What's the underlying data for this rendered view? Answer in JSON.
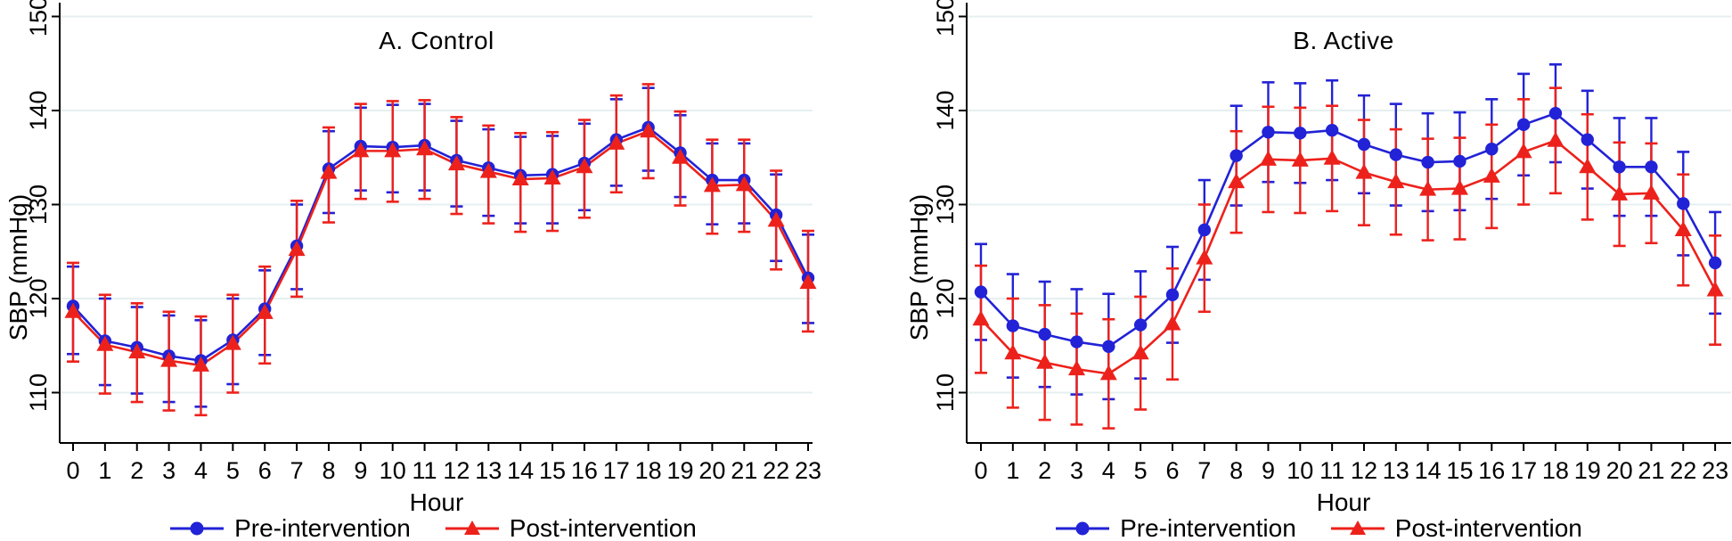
{
  "figure": {
    "background": "#ffffff",
    "grid_color": "#e5eff0",
    "axis_color": "#000000",
    "text_color": "#000000",
    "ylabel": "SBP (mmHg)",
    "xlabel": "Hour",
    "y_ticks": [
      110,
      120,
      130,
      140,
      150
    ],
    "legend": {
      "pre_label": "Pre-intervention",
      "post_label": "Post-intervention",
      "pre_color": "#2222d6",
      "post_color": "#ed211b",
      "pre_marker": "circle",
      "post_marker": "triangle"
    }
  },
  "chart_data": [
    {
      "type": "line",
      "title": "A. Control",
      "xlabel": "Hour",
      "ylabel": "SBP (mmHg)",
      "x": [
        0,
        1,
        2,
        3,
        4,
        5,
        6,
        7,
        8,
        9,
        10,
        11,
        12,
        13,
        14,
        15,
        16,
        17,
        18,
        19,
        20,
        21,
        22,
        23
      ],
      "yticks": [
        110,
        120,
        130,
        140,
        150
      ],
      "ylim": [
        104.6,
        151.5
      ],
      "grid": true,
      "legend_position": "bottom",
      "series": [
        {
          "name": "Pre-intervention",
          "color": "#2222d6",
          "marker": "circle",
          "values": [
            119.2,
            115.5,
            114.8,
            113.9,
            113.4,
            115.6,
            118.9,
            125.6,
            133.8,
            136.2,
            136.1,
            136.3,
            134.7,
            133.9,
            133.1,
            133.2,
            134.4,
            136.9,
            138.2,
            135.5,
            132.6,
            132.6,
            128.9,
            122.2
          ],
          "ci_low": [
            114.1,
            110.8,
            109.9,
            109.0,
            108.5,
            110.9,
            114.0,
            121.0,
            129.1,
            131.5,
            131.3,
            131.5,
            129.8,
            128.8,
            128.0,
            128.0,
            129.4,
            132.0,
            133.6,
            130.8,
            127.9,
            128.0,
            124.0,
            117.4
          ],
          "ci_high": [
            123.4,
            120.0,
            119.1,
            118.2,
            117.7,
            120.0,
            123.0,
            130.0,
            137.8,
            140.3,
            140.6,
            140.7,
            138.9,
            138.0,
            137.2,
            137.3,
            138.6,
            141.2,
            142.4,
            139.5,
            136.5,
            136.5,
            133.2,
            126.8
          ]
        },
        {
          "name": "Post-intervention",
          "color": "#ed211b",
          "marker": "triangle",
          "values": [
            118.6,
            115.1,
            114.3,
            113.4,
            112.9,
            115.2,
            118.5,
            125.2,
            133.4,
            135.7,
            135.7,
            135.9,
            134.3,
            133.5,
            132.7,
            132.8,
            134.0,
            136.5,
            137.8,
            135.0,
            132.0,
            132.1,
            128.3,
            121.7
          ],
          "ci_low": [
            113.3,
            109.9,
            109.0,
            108.1,
            107.6,
            110.0,
            113.1,
            120.2,
            128.1,
            130.6,
            130.3,
            130.6,
            129.0,
            128.0,
            127.1,
            127.2,
            128.6,
            131.3,
            132.8,
            129.9,
            126.9,
            127.1,
            123.1,
            116.5
          ],
          "ci_high": [
            123.8,
            120.4,
            119.5,
            118.6,
            118.1,
            120.4,
            123.4,
            130.4,
            138.2,
            140.7,
            141.0,
            141.1,
            139.3,
            138.4,
            137.6,
            137.7,
            139.0,
            141.6,
            142.8,
            139.9,
            136.9,
            136.9,
            133.6,
            127.2
          ]
        }
      ]
    },
    {
      "type": "line",
      "title": "B. Active",
      "xlabel": "Hour",
      "ylabel": "SBP (mmHg)",
      "x": [
        0,
        1,
        2,
        3,
        4,
        5,
        6,
        7,
        8,
        9,
        10,
        11,
        12,
        13,
        14,
        15,
        16,
        17,
        18,
        19,
        20,
        21,
        22,
        23
      ],
      "yticks": [
        110,
        120,
        130,
        140,
        150
      ],
      "ylim": [
        104.6,
        151.5
      ],
      "grid": true,
      "legend_position": "bottom",
      "series": [
        {
          "name": "Pre-intervention",
          "color": "#2222d6",
          "marker": "circle",
          "values": [
            120.7,
            117.1,
            116.2,
            115.4,
            114.9,
            117.2,
            120.4,
            127.3,
            135.2,
            137.7,
            137.6,
            137.9,
            136.4,
            135.3,
            134.5,
            134.6,
            135.9,
            138.5,
            139.7,
            136.9,
            134.0,
            134.0,
            130.1,
            123.8
          ],
          "ci_low": [
            115.6,
            111.6,
            110.6,
            109.8,
            109.3,
            111.5,
            115.3,
            122.0,
            129.9,
            132.4,
            132.3,
            132.6,
            131.2,
            129.9,
            129.3,
            129.4,
            130.6,
            133.1,
            134.5,
            131.7,
            128.8,
            128.8,
            124.6,
            118.4
          ],
          "ci_high": [
            125.8,
            122.6,
            121.8,
            121.0,
            120.5,
            122.9,
            125.5,
            132.6,
            140.5,
            143.0,
            142.9,
            143.2,
            141.6,
            140.7,
            139.7,
            139.8,
            141.2,
            143.9,
            144.9,
            142.1,
            139.2,
            139.2,
            135.6,
            129.2
          ]
        },
        {
          "name": "Post-intervention",
          "color": "#ed211b",
          "marker": "triangle",
          "values": [
            117.8,
            114.2,
            113.2,
            112.5,
            112.0,
            114.2,
            117.3,
            124.3,
            132.4,
            134.8,
            134.7,
            134.9,
            133.4,
            132.4,
            131.6,
            131.7,
            133.0,
            135.6,
            136.8,
            134.0,
            131.1,
            131.2,
            127.3,
            120.9
          ],
          "ci_low": [
            112.1,
            108.4,
            107.1,
            106.6,
            106.2,
            108.2,
            111.4,
            118.6,
            127.0,
            129.2,
            129.1,
            129.3,
            127.8,
            126.8,
            126.2,
            126.3,
            127.5,
            130.0,
            131.2,
            128.4,
            125.6,
            125.9,
            121.4,
            115.1
          ],
          "ci_high": [
            123.5,
            120.0,
            119.3,
            118.4,
            117.8,
            120.2,
            123.2,
            130.0,
            137.8,
            140.4,
            140.3,
            140.5,
            139.0,
            138.0,
            137.0,
            137.1,
            138.5,
            141.2,
            142.4,
            139.6,
            136.6,
            136.5,
            133.2,
            126.7
          ]
        }
      ]
    }
  ]
}
